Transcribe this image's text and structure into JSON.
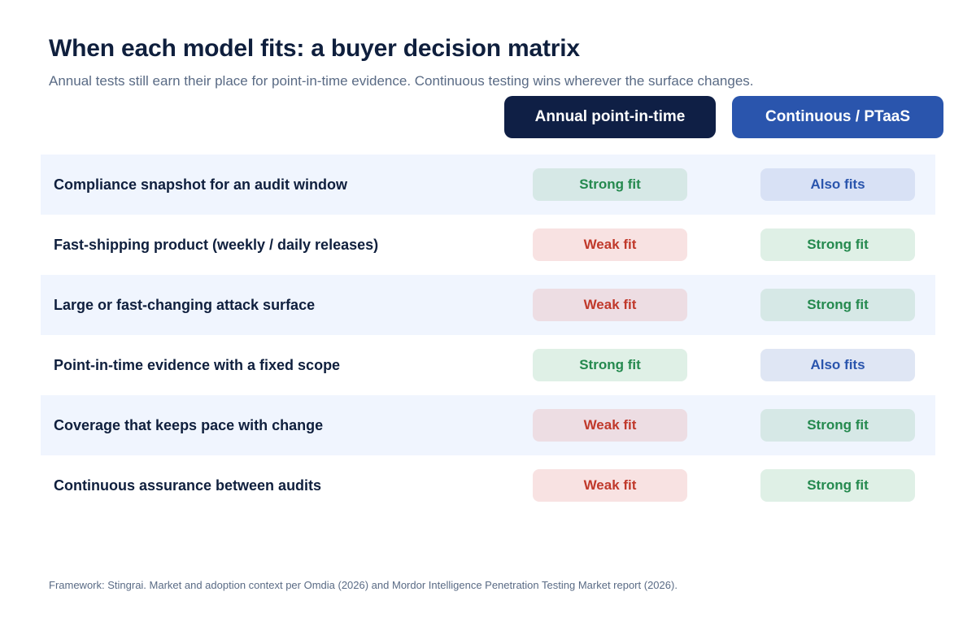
{
  "title": "When each model fits: a buyer decision matrix",
  "subtitle": "Annual tests still earn their place for point-in-time evidence. Continuous testing wins wherever the surface changes.",
  "columns": {
    "annual": "Annual point-in-time",
    "continuous": "Continuous / PTaaS"
  },
  "colors": {
    "annual_header": "#0f1f45",
    "continuous_header": "#2a55ad",
    "strong_fit_text": "#24894e",
    "weak_fit_text": "#c0392b",
    "also_fits_text": "#2a55ad",
    "row_shade": "#f0f5fe"
  },
  "rows": [
    {
      "label": "Compliance snapshot for an audit window",
      "annual": "Strong fit",
      "continuous": "Also fits"
    },
    {
      "label": "Fast-shipping product (weekly / daily releases)",
      "annual": "Weak fit",
      "continuous": "Strong fit"
    },
    {
      "label": "Large or fast-changing attack surface",
      "annual": "Weak fit",
      "continuous": "Strong fit"
    },
    {
      "label": "Point-in-time evidence with a fixed scope",
      "annual": "Strong fit",
      "continuous": "Also fits"
    },
    {
      "label": "Coverage that keeps pace with change",
      "annual": "Weak fit",
      "continuous": "Strong fit"
    },
    {
      "label": "Continuous assurance between audits",
      "annual": "Weak fit",
      "continuous": "Strong fit"
    }
  ],
  "footnote": "Framework: Stingrai. Market and adoption context per Omdia (2026) and Mordor Intelligence Penetration Testing Market report (2026)."
}
